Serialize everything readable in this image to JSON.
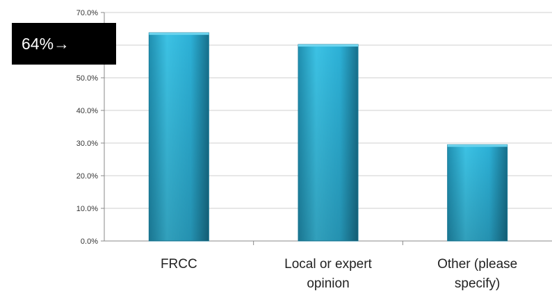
{
  "chart_data": {
    "type": "bar",
    "categories": [
      [
        "FRCC"
      ],
      [
        "Local or expert",
        "opinion"
      ],
      [
        "Other (please",
        "specify)"
      ]
    ],
    "values": [
      63.8,
      60.2,
      29.5
    ],
    "ylim": [
      0,
      70
    ],
    "yticks": [
      "0.0%",
      "10.0%",
      "20.0%",
      "30.0%",
      "40.0%",
      "50.0%",
      "60.0%",
      "70.0%"
    ],
    "grid": true,
    "title": "",
    "xlabel": "",
    "ylabel": "",
    "bar_color": "#29b0d6"
  },
  "annotation": {
    "text": "64%",
    "arrow": "→",
    "background": "#000000",
    "color": "#ffffff"
  }
}
